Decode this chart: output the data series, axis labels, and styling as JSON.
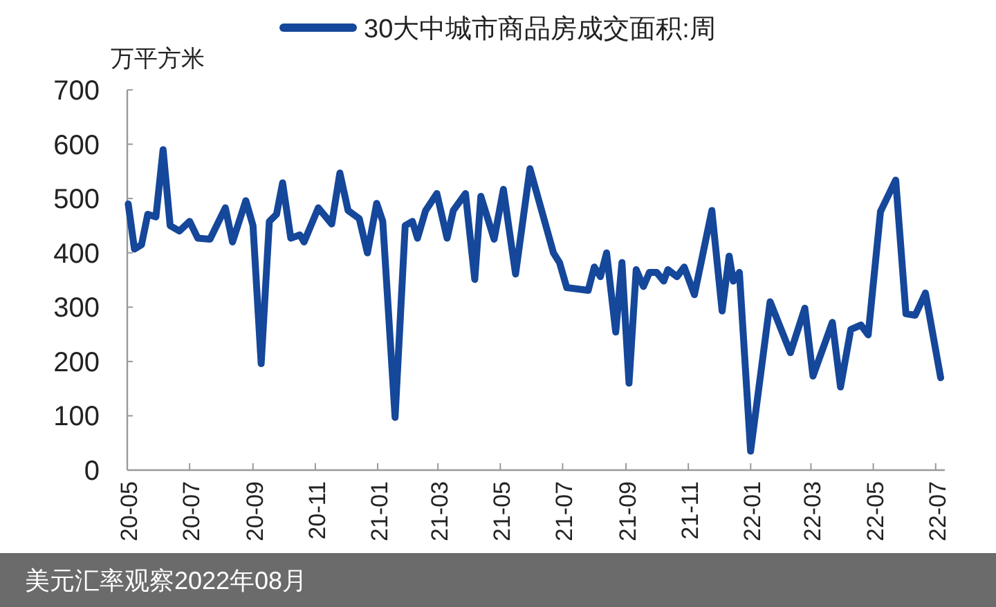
{
  "chart_data": {
    "type": "line",
    "ylabel": "万平方米",
    "legend": "top",
    "line_style": "solid",
    "annotations": [
      "美元汇率观察2022年08月"
    ],
    "xlim": [
      "2020-05-01",
      "2022-07-10"
    ],
    "ylim": [
      0,
      700
    ],
    "yticks": [
      0,
      100,
      200,
      300,
      400,
      500,
      600,
      700
    ],
    "xticks": [
      {
        "value": "2020-05",
        "label": "20-05"
      },
      {
        "value": "2020-07",
        "label": "20-07"
      },
      {
        "value": "2020-09",
        "label": "20-09"
      },
      {
        "value": "2020-11",
        "label": "20-11"
      },
      {
        "value": "2021-01",
        "label": "21-01"
      },
      {
        "value": "2021-03",
        "label": "21-03"
      },
      {
        "value": "2021-05",
        "label": "21-05"
      },
      {
        "value": "2021-07",
        "label": "21-07"
      },
      {
        "value": "2021-09",
        "label": "21-09"
      },
      {
        "value": "2021-11",
        "label": "21-11"
      },
      {
        "value": "2022-01",
        "label": "22-01"
      },
      {
        "value": "2022-03",
        "label": "22-03"
      },
      {
        "value": "2022-05",
        "label": "22-05"
      },
      {
        "value": "2022-07",
        "label": "22-07"
      }
    ],
    "x": [
      "2020-05-02",
      "2020-05-08",
      "2020-05-15",
      "2020-05-21",
      "2020-05-29",
      "2020-06-05",
      "2020-06-12",
      "2020-06-21",
      "2020-07-01",
      "2020-07-09",
      "2020-07-21",
      "2020-08-05",
      "2020-08-12",
      "2020-08-25",
      "2020-09-01",
      "2020-09-09",
      "2020-09-17",
      "2020-09-24",
      "2020-09-30",
      "2020-10-08",
      "2020-10-17",
      "2020-10-21",
      "2020-11-04",
      "2020-11-17",
      "2020-11-25",
      "2020-12-03",
      "2020-12-14",
      "2020-12-22",
      "2020-12-31",
      "2021-01-06",
      "2021-01-18",
      "2021-01-28",
      "2021-02-04",
      "2021-02-09",
      "2021-02-17",
      "2021-02-28",
      "2021-03-10",
      "2021-03-16",
      "2021-03-28",
      "2021-04-06",
      "2021-04-12",
      "2021-04-25",
      "2021-05-04",
      "2021-05-16",
      "2021-05-30",
      "2021-06-22",
      "2021-06-28",
      "2021-07-05",
      "2021-07-26",
      "2021-08-01",
      "2021-08-07",
      "2021-08-13",
      "2021-08-22",
      "2021-08-28",
      "2021-09-04",
      "2021-09-11",
      "2021-09-18",
      "2021-09-24",
      "2021-10-01",
      "2021-10-08",
      "2021-10-12",
      "2021-10-21",
      "2021-10-28",
      "2021-11-07",
      "2021-11-24",
      "2021-12-04",
      "2021-12-11",
      "2021-12-15",
      "2021-12-21",
      "2022-01-01",
      "2022-01-20",
      "2022-02-09",
      "2022-02-23",
      "2022-03-03",
      "2022-03-22",
      "2022-03-30",
      "2022-04-09",
      "2022-04-19",
      "2022-04-26",
      "2022-05-08",
      "2022-05-23",
      "2022-06-02",
      "2022-06-11",
      "2022-06-21",
      "2022-07-06"
    ],
    "series": [
      {
        "name": "30大中城市商品房成交面积:周",
        "color": "#15479a",
        "values": [
          490,
          407,
          415,
          471,
          466,
          590,
          450,
          440,
          458,
          427,
          425,
          483,
          420,
          496,
          450,
          196,
          458,
          471,
          529,
          427,
          433,
          420,
          483,
          453,
          547,
          478,
          463,
          400,
          491,
          458,
          97,
          450,
          458,
          427,
          478,
          509,
          427,
          478,
          509,
          351,
          504,
          425,
          517,
          361,
          555,
          400,
          382,
          336,
          331,
          374,
          356,
          400,
          254,
          382,
          160,
          369,
          338,
          364,
          364,
          348,
          369,
          356,
          374,
          323,
          478,
          293,
          394,
          348,
          364,
          35,
          310,
          216,
          298,
          173,
          272,
          153,
          259,
          267,
          249,
          476,
          534,
          288,
          285,
          326,
          170
        ]
      }
    ]
  }
}
